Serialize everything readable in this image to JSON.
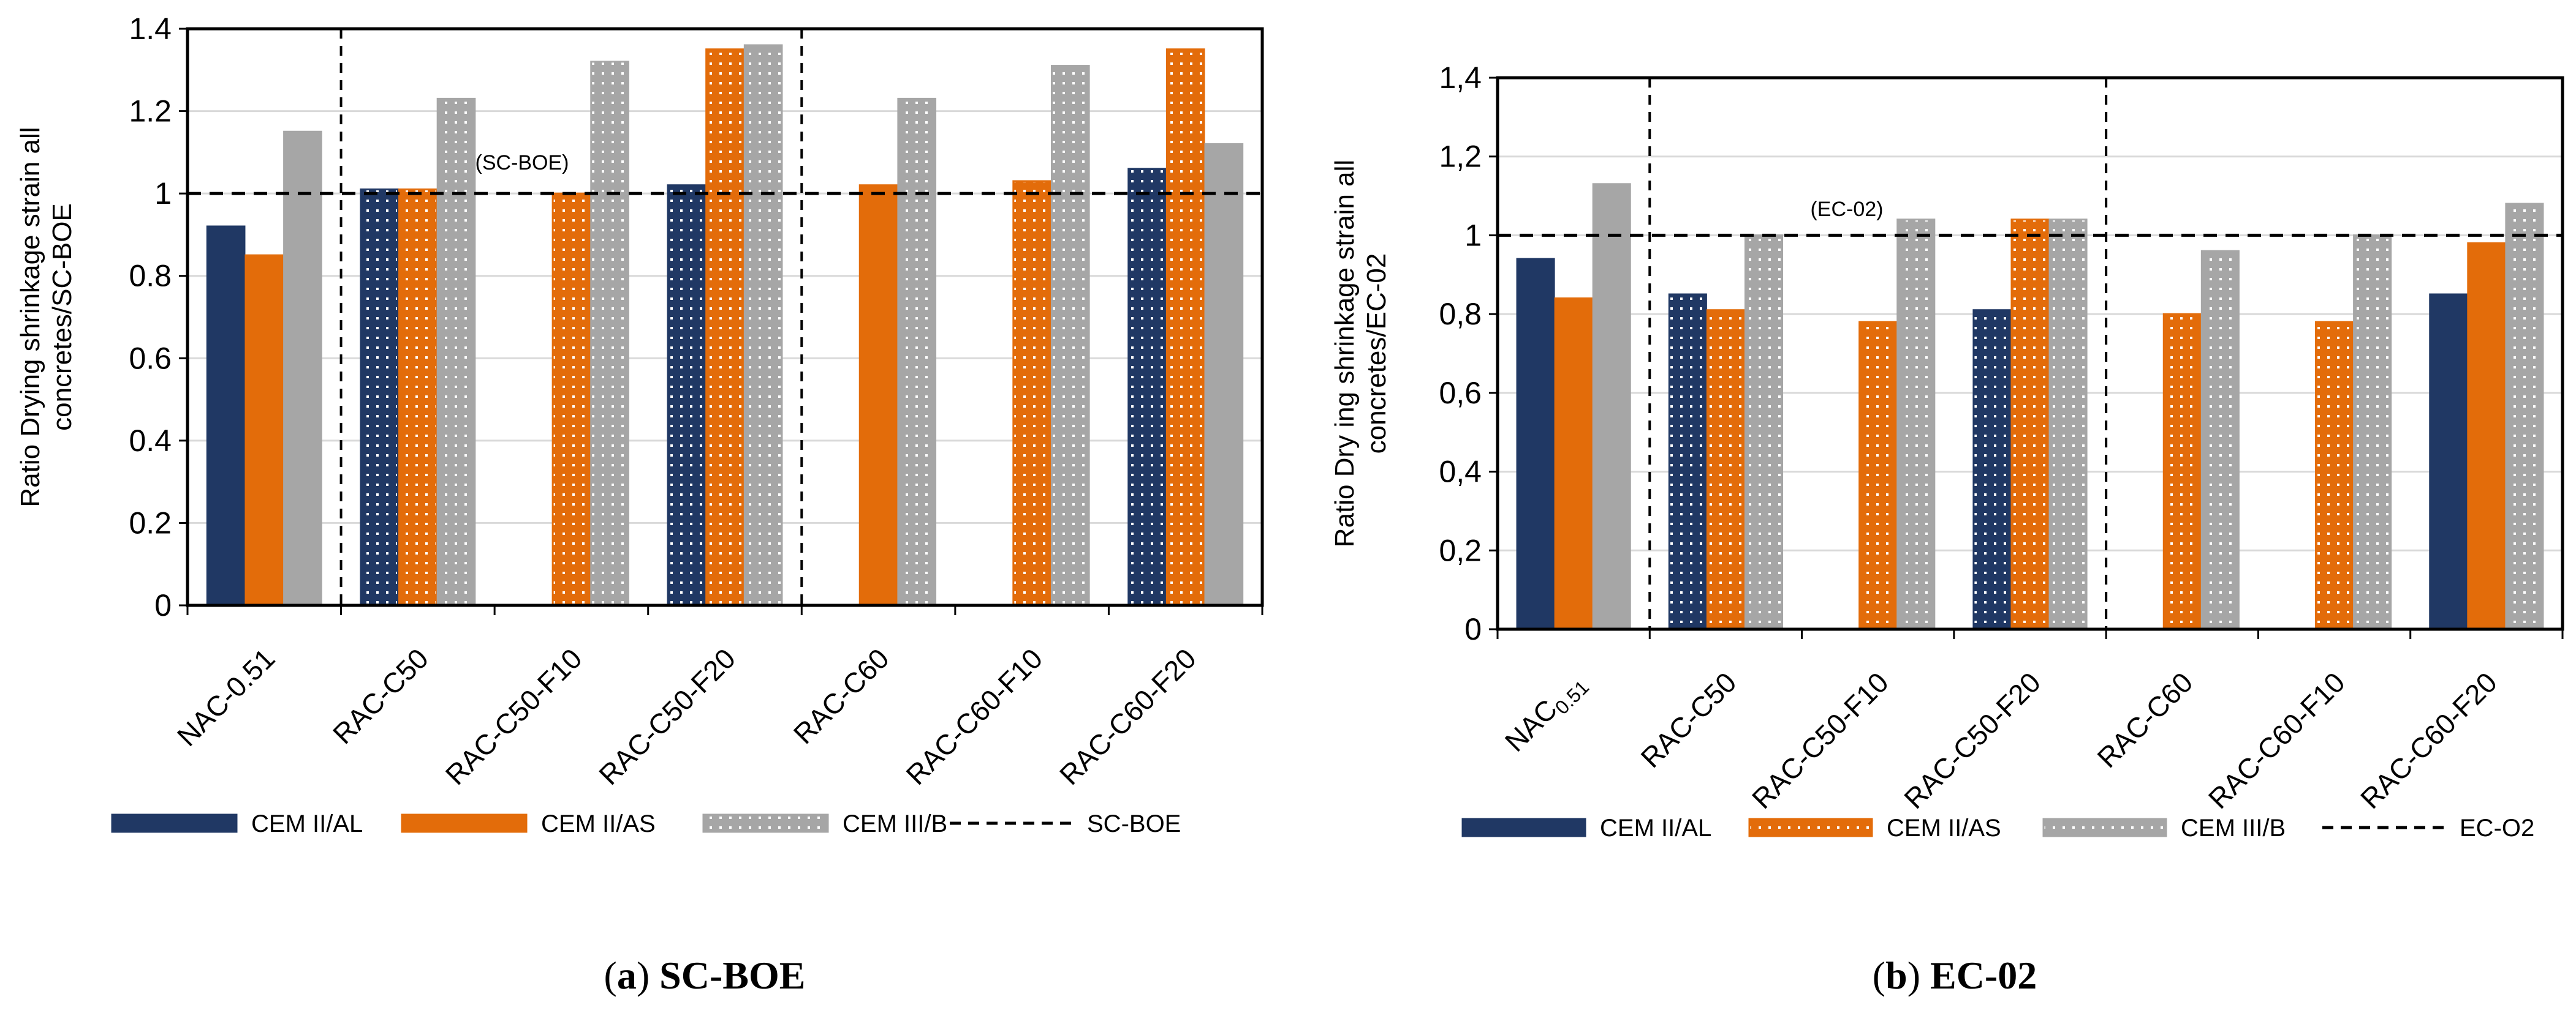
{
  "chart_data": [
    {
      "type": "bar",
      "caption_letter": "(a)",
      "caption_title": "SC-BOE",
      "ylabel_line1": "Ratio Drying shrinkage strain all",
      "ylabel_line2": "concretes/SC-BOE",
      "ylim": [
        0,
        1.4
      ],
      "yticks": [
        "0",
        "0.2",
        "0.4",
        "0.6",
        "0.8",
        "1",
        "1.2",
        "1.4"
      ],
      "categories": [
        "NAC-0.51",
        "RAC-C50",
        "RAC-C50-F10",
        "RAC-C50-F20",
        "RAC-C60",
        "RAC-C60-F10",
        "RAC-C60-F20"
      ],
      "series": [
        {
          "name": "CEM II/AL",
          "color": "#203864",
          "values": [
            0.92,
            1.01,
            null,
            1.02,
            null,
            null,
            1.06
          ]
        },
        {
          "name": "CEM II/AS",
          "color": "#E36C0A",
          "values": [
            0.85,
            1.01,
            1.0,
            1.35,
            1.02,
            1.03,
            1.35
          ]
        },
        {
          "name": "CEM III/B",
          "color": "#A6A6A6",
          "values": [
            1.15,
            1.23,
            1.32,
            1.36,
            1.23,
            1.31,
            1.12
          ]
        }
      ],
      "reference_line": {
        "name": "SC-BOE",
        "value": 1.0,
        "label": "(SC-BOE)"
      },
      "separators_after_category": [
        0,
        3
      ]
    },
    {
      "type": "bar",
      "caption_letter": "(b)",
      "caption_title": "EC-02",
      "ylabel_line1": "Ratio Dry ing shrinkage strain all",
      "ylabel_line2": "concretes/EC-02",
      "ylim": [
        0,
        1.4
      ],
      "yticks": [
        "0",
        "0,2",
        "0,4",
        "0,6",
        "0,8",
        "1",
        "1,2",
        "1,4"
      ],
      "categories": [
        "NAC0.51",
        "RAC-C50",
        "RAC-C50-F10",
        "RAC-C50-F20",
        "RAC-C60",
        "RAC-C60-F10",
        "RAC-C60-F20"
      ],
      "category_display": [
        {
          "main": "NAC",
          "sub": "0.51"
        },
        {
          "main": "RAC-C50",
          "sub": ""
        },
        {
          "main": "RAC-C50-F10",
          "sub": ""
        },
        {
          "main": "RAC-C50-F20",
          "sub": ""
        },
        {
          "main": "RAC-C60",
          "sub": ""
        },
        {
          "main": "RAC-C60-F10",
          "sub": ""
        },
        {
          "main": "RAC-C60-F20",
          "sub": ""
        }
      ],
      "series": [
        {
          "name": "CEM II/AL",
          "color": "#203864",
          "values": [
            0.94,
            0.85,
            null,
            0.81,
            null,
            null,
            0.85
          ]
        },
        {
          "name": "CEM II/AS",
          "color": "#E36C0A",
          "values": [
            0.84,
            0.81,
            0.78,
            1.04,
            0.8,
            0.78,
            0.98
          ]
        },
        {
          "name": "CEM III/B",
          "color": "#A6A6A6",
          "values": [
            1.13,
            1.0,
            1.04,
            1.04,
            0.96,
            1.0,
            1.08
          ]
        }
      ],
      "reference_line": {
        "name": "EC-O2",
        "value": 1.0,
        "label": "(EC-02)"
      },
      "separators_after_category": [
        0,
        3
      ]
    }
  ]
}
